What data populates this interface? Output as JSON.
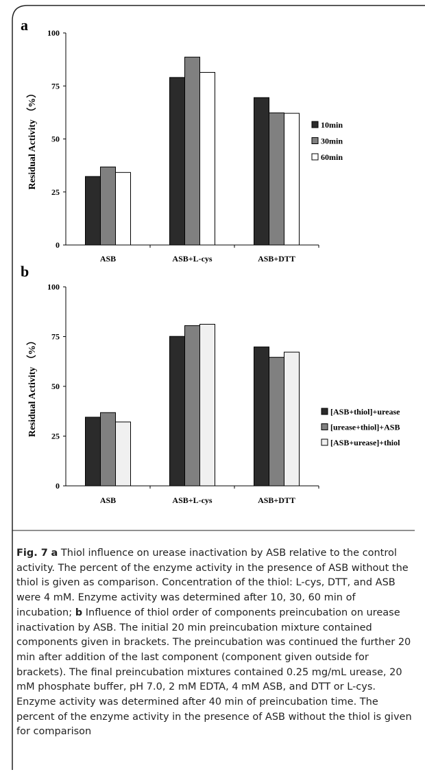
{
  "chart_data": [
    {
      "type": "bar",
      "panel": "a",
      "ylabel": "Residual Activity （%）",
      "ylim": [
        0,
        100
      ],
      "yticks": [
        0,
        25,
        50,
        75,
        100
      ],
      "categories": [
        "ASB",
        "ASB+L-cys",
        "ASB+DTT"
      ],
      "legend_position": "right",
      "series": [
        {
          "name": "10min",
          "color": "#2b2b2b",
          "values": [
            32.3,
            79,
            69.5
          ]
        },
        {
          "name": "30min",
          "color": "#808080",
          "values": [
            36.8,
            88.6,
            62.3
          ]
        },
        {
          "name": "60min",
          "color": "#ffffff",
          "values": [
            34.2,
            81.4,
            62.1
          ]
        }
      ]
    },
    {
      "type": "bar",
      "panel": "b",
      "ylabel": "Residual Activity （%）",
      "ylim": [
        0,
        100
      ],
      "yticks": [
        0,
        25,
        50,
        75,
        100
      ],
      "categories": [
        "ASB",
        "ASB+L-cys",
        "ASB+DTT"
      ],
      "legend_position": "right",
      "series": [
        {
          "name": "[ASB+thiol]+urease",
          "color": "#2b2b2b",
          "values": [
            34.5,
            75.1,
            69.8
          ]
        },
        {
          "name": "[urease+thiol]+ASB",
          "color": "#808080",
          "values": [
            36.8,
            80.5,
            64.6
          ]
        },
        {
          "name": "[ASB+urease]+thiol",
          "color": "#f0f0f0",
          "values": [
            32.1,
            81.2,
            67.2
          ]
        }
      ]
    }
  ],
  "caption": {
    "label": "Fig. 7",
    "a_letter": "a",
    "a_text": " Thiol influence on urease inactivation by ASB relative to the control activity. The percent of the enzyme activity in the presence of ASB without the thiol is given as comparison. Concentration of the thiol: L-cys, DTT, and ASB were 4 mM. Enzyme activity was determined after 10, 30, 60 min of incubation; ",
    "b_letter": "b",
    "b_text": " Influence of thiol order of components preincubation on urease inactivation by ASB. The initial 20 min preincubation mixture contained components given in brackets. The preincubation was continued the further 20 min after addition of the last component (component given outside for brackets). The final preincubation mixtures contained 0.25 mg/mL urease, 20 mM phosphate buffer, pH 7.0, 2 mM EDTA, 4 mM ASB, and DTT or L-cys. Enzyme activity was determined after 40 min of preincubation time. The percent of the enzyme activity in the presence of ASB without the thiol is given for comparison"
  }
}
